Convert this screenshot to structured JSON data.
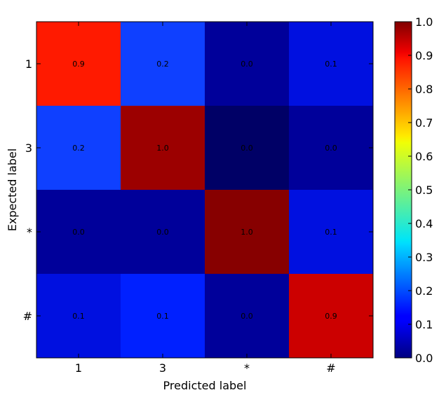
{
  "chart_data": {
    "type": "heatmap",
    "title": "",
    "xlabel": "Predicted label",
    "ylabel": "Expected label",
    "x_categories": [
      "1",
      "3",
      "*",
      "#"
    ],
    "y_categories": [
      "1",
      "3",
      "*",
      "#"
    ],
    "values": [
      [
        0.9,
        0.2,
        0.0,
        0.1
      ],
      [
        0.2,
        1.0,
        0.0,
        0.0
      ],
      [
        0.0,
        0.0,
        1.0,
        0.1
      ],
      [
        0.1,
        0.1,
        0.0,
        0.9
      ]
    ],
    "cell_colors": [
      [
        "#ff1a00",
        "#0f40ff",
        "#00009a",
        "#0010e0"
      ],
      [
        "#0f40ff",
        "#9c0000",
        "#000066",
        "#00009a"
      ],
      [
        "#00009a",
        "#00009a",
        "#870000",
        "#0010e0"
      ],
      [
        "#0010e0",
        "#0020ff",
        "#00009a",
        "#cc0000"
      ]
    ],
    "colorbar": {
      "min": 0.0,
      "max": 1.0,
      "ticks": [
        "0.0",
        "0.1",
        "0.2",
        "0.3",
        "0.4",
        "0.5",
        "0.6",
        "0.7",
        "0.8",
        "0.9",
        "1.0"
      ],
      "colormap": "jet"
    },
    "grid": false
  }
}
